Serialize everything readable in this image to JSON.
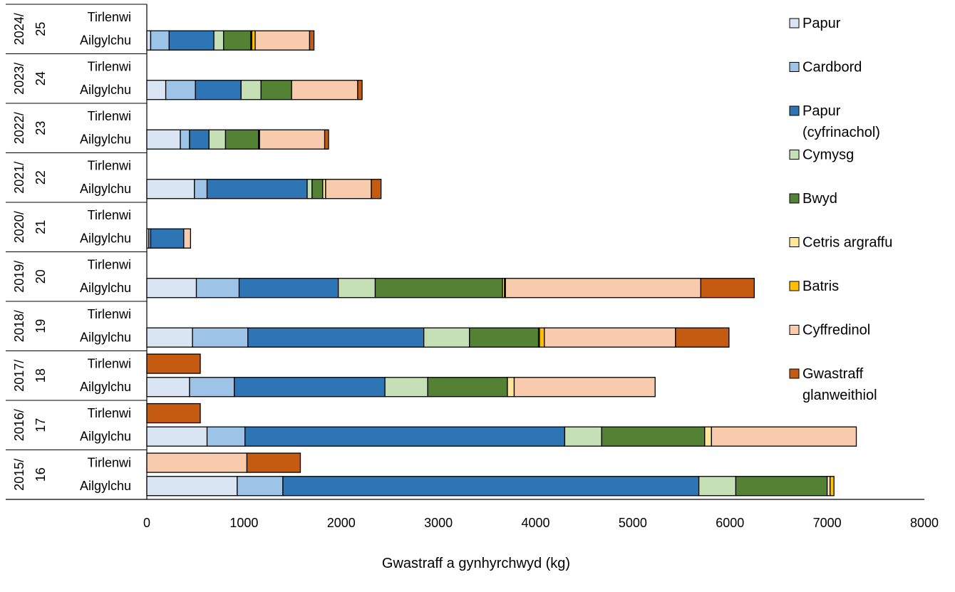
{
  "chart_data": {
    "type": "bar",
    "orientation": "horizontal",
    "stacked": true,
    "title": "",
    "xlabel": "Gwastraff a gynhyrchwyd (kg)",
    "ylabel": "",
    "xlim": [
      0,
      8000
    ],
    "x_ticks": [
      "0",
      "1000",
      "2000",
      "3000",
      "4000",
      "5000",
      "6000",
      "7000",
      "8000"
    ],
    "legend_position": "right",
    "series": [
      {
        "name": "Papur",
        "color": "#dae5f4"
      },
      {
        "name": "Cardbord",
        "color": "#9dc3e6"
      },
      {
        "name": "Papur (cyfrinachol)",
        "color": "#2e75b6"
      },
      {
        "name": "Cymysg",
        "color": "#c5e0b4"
      },
      {
        "name": "Bwyd",
        "color": "#548235"
      },
      {
        "name": "Cetris argraffu",
        "color": "#ffe699"
      },
      {
        "name": "Batris",
        "color": "#ffc000"
      },
      {
        "name": "Cyffredinol",
        "color": "#f8cbad"
      },
      {
        "name": "Gwastraff glanweithiol",
        "color": "#c55a11"
      }
    ],
    "groups": [
      {
        "line1": "2024/",
        "line2": "25",
        "bars": [
          {
            "label": "Tirlenwi",
            "values": [
              0,
              0,
              0,
              0,
              0,
              0,
              0,
              0,
              0
            ]
          },
          {
            "label": "Ailgylchu",
            "values": [
              40,
              190,
              460,
              100,
              280,
              10,
              35,
              560,
              45
            ]
          }
        ]
      },
      {
        "line1": "2023/",
        "line2": "24",
        "bars": [
          {
            "label": "Tirlenwi",
            "values": [
              0,
              0,
              0,
              0,
              0,
              0,
              0,
              0,
              0
            ]
          },
          {
            "label": "Ailgylchu",
            "values": [
              195,
              305,
              470,
              205,
              315,
              0,
              0,
              680,
              45
            ]
          }
        ]
      },
      {
        "line1": "2022/",
        "line2": "23",
        "bars": [
          {
            "label": "Tirlenwi",
            "values": [
              0,
              0,
              0,
              0,
              0,
              0,
              0,
              0,
              0
            ]
          },
          {
            "label": "Ailgylchu",
            "values": [
              345,
              95,
              200,
              170,
              340,
              10,
              0,
              670,
              40
            ]
          }
        ]
      },
      {
        "line1": "2021/",
        "line2": "22",
        "bars": [
          {
            "label": "Tirlenwi",
            "values": [
              0,
              0,
              0,
              0,
              0,
              0,
              0,
              0,
              0
            ]
          },
          {
            "label": "Ailgylchu",
            "values": [
              490,
              130,
              1030,
              50,
              110,
              30,
              0,
              470,
              100
            ]
          }
        ]
      },
      {
        "line1": "2020/",
        "line2": "21",
        "bars": [
          {
            "label": "Tirlenwi",
            "values": [
              0,
              0,
              0,
              0,
              0,
              0,
              0,
              0,
              0
            ]
          },
          {
            "label": "Ailgylchu",
            "values": [
              20,
              20,
              340,
              0,
              0,
              0,
              0,
              70,
              0
            ]
          }
        ]
      },
      {
        "line1": "2019/",
        "line2": "20",
        "bars": [
          {
            "label": "Tirlenwi",
            "values": [
              0,
              0,
              0,
              0,
              0,
              0,
              0,
              0,
              0
            ]
          },
          {
            "label": "Ailgylchu",
            "values": [
              510,
              440,
              1020,
              380,
              1310,
              20,
              10,
              2010,
              550
            ]
          }
        ]
      },
      {
        "line1": "2018/",
        "line2": "19",
        "bars": [
          {
            "label": "Tirlenwi",
            "values": [
              0,
              0,
              0,
              0,
              0,
              0,
              0,
              0,
              0
            ]
          },
          {
            "label": "Ailgylchu",
            "values": [
              470,
              570,
              1810,
              470,
              710,
              10,
              50,
              1350,
              550
            ]
          }
        ]
      },
      {
        "line1": "2017/",
        "line2": "18",
        "bars": [
          {
            "label": "Tirlenwi",
            "values": [
              0,
              0,
              0,
              0,
              0,
              0,
              0,
              0,
              550
            ]
          },
          {
            "label": "Ailgylchu",
            "values": [
              440,
              460,
              1550,
              440,
              820,
              70,
              0,
              1450,
              0
            ]
          }
        ]
      },
      {
        "line1": "2016/",
        "line2": "17",
        "bars": [
          {
            "label": "Tirlenwi",
            "values": [
              0,
              0,
              0,
              0,
              0,
              0,
              0,
              0,
              550
            ]
          },
          {
            "label": "Ailgylchu",
            "values": [
              620,
              390,
              3290,
              380,
              1060,
              70,
              0,
              1490,
              0
            ]
          }
        ]
      },
      {
        "line1": "2015/",
        "line2": "16",
        "bars": [
          {
            "label": "Tirlenwi",
            "values": [
              0,
              0,
              0,
              0,
              0,
              0,
              0,
              1030,
              550
            ]
          },
          {
            "label": "Ailgylchu",
            "values": [
              930,
              470,
              4280,
              380,
              940,
              30,
              40,
              0,
              0
            ]
          }
        ]
      }
    ]
  }
}
